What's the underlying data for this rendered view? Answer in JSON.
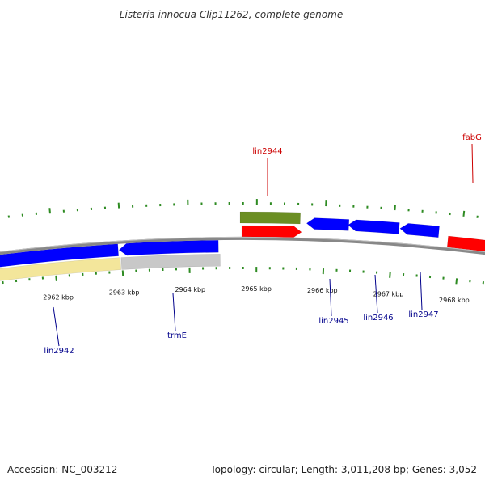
{
  "title": "Listeria innocua Clip11262, complete genome",
  "footer": {
    "accession": "Accession: NC_003212",
    "summary": "Topology: circular; Length: 3,011,208 bp; Genes: 3,052"
  },
  "colors": {
    "backbone": "#888888",
    "tick": "#2e8b22",
    "forward_cds": "#ff0000",
    "reverse_cds": "#0000ff",
    "rna": "#6b8e23",
    "gene_pale": "#f3e69b",
    "gene_grey": "#c8c8c8",
    "label_forward": "#cc0000",
    "label_reverse": "#00008b"
  },
  "ticks": [
    {
      "label": "2962 kbp"
    },
    {
      "label": "2963 kbp"
    },
    {
      "label": "2964 kbp"
    },
    {
      "label": "2965 kbp"
    },
    {
      "label": "2966 kbp"
    },
    {
      "label": "2967 kbp"
    },
    {
      "label": "2968 kbp"
    }
  ],
  "genes": [
    {
      "name": "lin2944",
      "strand": "forward"
    },
    {
      "name": "fabG",
      "strand": "forward"
    },
    {
      "name": "lin2942",
      "strand": "reverse"
    },
    {
      "name": "trmE",
      "strand": "reverse"
    },
    {
      "name": "lin2945",
      "strand": "reverse"
    },
    {
      "name": "lin2946",
      "strand": "reverse"
    },
    {
      "name": "lin2947",
      "strand": "reverse"
    }
  ]
}
